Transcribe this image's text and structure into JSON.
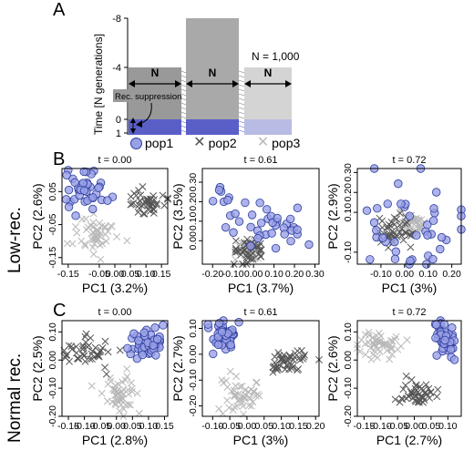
{
  "panel_labels": {
    "a": "A",
    "b": "B",
    "c": "C"
  },
  "panelA": {
    "ylabel": "Time [N generations]",
    "yticks": [
      "-8",
      "-4",
      "0",
      "1"
    ],
    "n_label": "N",
    "n_total": "N = 1,000",
    "rec_label": "Rec. suppression"
  },
  "legend": {
    "pop1": "pop1",
    "pop2": "pop2",
    "pop3": "pop3"
  },
  "row_labels": {
    "low": "Low-rec.",
    "normal": "Normal rec."
  },
  "colors": {
    "pop1_fill": "#9aa0e6",
    "pop1_edge": "#2c3e9e",
    "pop2": "#555555",
    "pop3": "#b8b8b8",
    "band": "#5a5fc8"
  },
  "chart_data": [
    {
      "type": "scatter",
      "title": "t = 0.00",
      "xlabel": "PC1 (3.2%)",
      "ylabel": "PC2 (2.6%)",
      "xlim": [
        -0.17,
        0.17
      ],
      "ylim": [
        -0.17,
        0.12
      ],
      "xticks": [
        -0.15,
        -0.05,
        0.05,
        0.15
      ],
      "xticks2": [
        0.0,
        0.1
      ],
      "yticks": [
        -0.15,
        -0.05,
        0.05
      ],
      "clusters": [
        {
          "series": "pop1",
          "cx": -0.09,
          "cy": 0.06,
          "sx": 0.03,
          "sy": 0.03,
          "n": 45
        },
        {
          "series": "pop2",
          "cx": 0.1,
          "cy": 0.02,
          "sx": 0.03,
          "sy": 0.02,
          "n": 45
        },
        {
          "series": "pop3",
          "cx": -0.06,
          "cy": -0.08,
          "sx": 0.035,
          "sy": 0.03,
          "n": 50
        }
      ]
    },
    {
      "type": "scatter",
      "title": "t = 0.61",
      "xlabel": "PC1 (3.7%)",
      "ylabel": "PC2 (3.5%)",
      "xlim": [
        -0.25,
        0.32
      ],
      "ylim": [
        -0.12,
        0.37
      ],
      "xticks": [
        -0.2,
        0.0,
        0.2
      ],
      "xticks2": [
        -0.1,
        0.1,
        0.3
      ],
      "yticks": [
        0.0,
        0.1,
        0.2,
        0.3
      ],
      "clusters": [
        {
          "series": "pop1",
          "cx": 0.12,
          "cy": 0.07,
          "sx": 0.08,
          "sy": 0.06,
          "n": 30
        },
        {
          "series": "pop1",
          "cx": -0.15,
          "cy": 0.17,
          "sx": 0.04,
          "sy": 0.06,
          "n": 12
        },
        {
          "series": "pop2",
          "cx": -0.02,
          "cy": -0.05,
          "sx": 0.04,
          "sy": 0.03,
          "n": 45
        },
        {
          "series": "pop3",
          "cx": -0.03,
          "cy": -0.05,
          "sx": 0.03,
          "sy": 0.03,
          "n": 45
        }
      ]
    },
    {
      "type": "scatter",
      "title": "t = 0.72",
      "xlabel": "PC1 (3%)",
      "ylabel": "PC2 (2.9%)",
      "xlim": [
        -0.2,
        0.24
      ],
      "ylim": [
        -0.16,
        0.32
      ],
      "xticks": [
        -0.1,
        0.1,
        0.2
      ],
      "xticks2": [
        0.0
      ],
      "yticks": [
        -0.1,
        0.1,
        0.2,
        0.3
      ],
      "clusters": [
        {
          "series": "pop1",
          "cx": 0.0,
          "cy": 0.05,
          "sx": 0.13,
          "sy": 0.12,
          "n": 40
        },
        {
          "series": "pop2",
          "cx": -0.04,
          "cy": 0.0,
          "sx": 0.04,
          "sy": 0.04,
          "n": 45
        },
        {
          "series": "pop3",
          "cx": 0.02,
          "cy": 0.04,
          "sx": 0.03,
          "sy": 0.03,
          "n": 45
        }
      ]
    },
    {
      "type": "scatter",
      "title": "t = 0.00",
      "xlabel": "PC1 (2.8%)",
      "ylabel": "PC2 (2.5%)",
      "xlim": [
        -0.17,
        0.16
      ],
      "ylim": [
        -0.2,
        0.14
      ],
      "xticks": [
        -0.15,
        -0.05,
        0.05,
        0.15
      ],
      "xticks2": [
        -0.1,
        0.0,
        0.1
      ],
      "yticks": [
        -0.2,
        -0.1,
        0.0,
        0.1
      ],
      "clusters": [
        {
          "series": "pop1",
          "cx": 0.09,
          "cy": 0.06,
          "sx": 0.03,
          "sy": 0.025,
          "n": 45
        },
        {
          "series": "pop2",
          "cx": -0.09,
          "cy": 0.03,
          "sx": 0.04,
          "sy": 0.025,
          "n": 45
        },
        {
          "series": "pop3",
          "cx": 0.01,
          "cy": -0.12,
          "sx": 0.025,
          "sy": 0.04,
          "n": 50
        }
      ]
    },
    {
      "type": "scatter",
      "title": "t = 0.61",
      "xlabel": "PC1 (3%)",
      "ylabel": "PC2 (2.7%)",
      "xlim": [
        -0.13,
        0.21
      ],
      "ylim": [
        -0.24,
        0.13
      ],
      "xticks": [
        -0.1,
        0.0,
        0.1,
        0.2
      ],
      "xticks2": [
        -0.05,
        0.05,
        0.15
      ],
      "yticks": [
        -0.2,
        -0.1,
        0.0,
        0.1
      ],
      "clusters": [
        {
          "series": "pop1",
          "cx": -0.07,
          "cy": 0.07,
          "sx": 0.025,
          "sy": 0.03,
          "n": 45
        },
        {
          "series": "pop2",
          "cx": 0.12,
          "cy": -0.02,
          "sx": 0.03,
          "sy": 0.025,
          "n": 45
        },
        {
          "series": "pop3",
          "cx": -0.02,
          "cy": -0.15,
          "sx": 0.025,
          "sy": 0.04,
          "n": 50
        }
      ]
    },
    {
      "type": "scatter",
      "title": "t = 0.72",
      "xlabel": "PC1 (2.7%)",
      "ylabel": "PC2 (2.6%)",
      "xlim": [
        -0.17,
        0.14
      ],
      "ylim": [
        -0.2,
        0.14
      ],
      "xticks": [
        -0.15,
        -0.05,
        0.05
      ],
      "xticks2": [
        -0.1,
        0.0,
        0.1
      ],
      "yticks": [
        -0.2,
        -0.1,
        0.0,
        0.1
      ],
      "clusters": [
        {
          "series": "pop1",
          "cx": 0.09,
          "cy": 0.07,
          "sx": 0.02,
          "sy": 0.035,
          "n": 45
        },
        {
          "series": "pop2",
          "cx": 0.01,
          "cy": -0.12,
          "sx": 0.025,
          "sy": 0.025,
          "n": 45
        },
        {
          "series": "pop3",
          "cx": -0.11,
          "cy": 0.05,
          "sx": 0.03,
          "sy": 0.025,
          "n": 50
        }
      ]
    }
  ]
}
